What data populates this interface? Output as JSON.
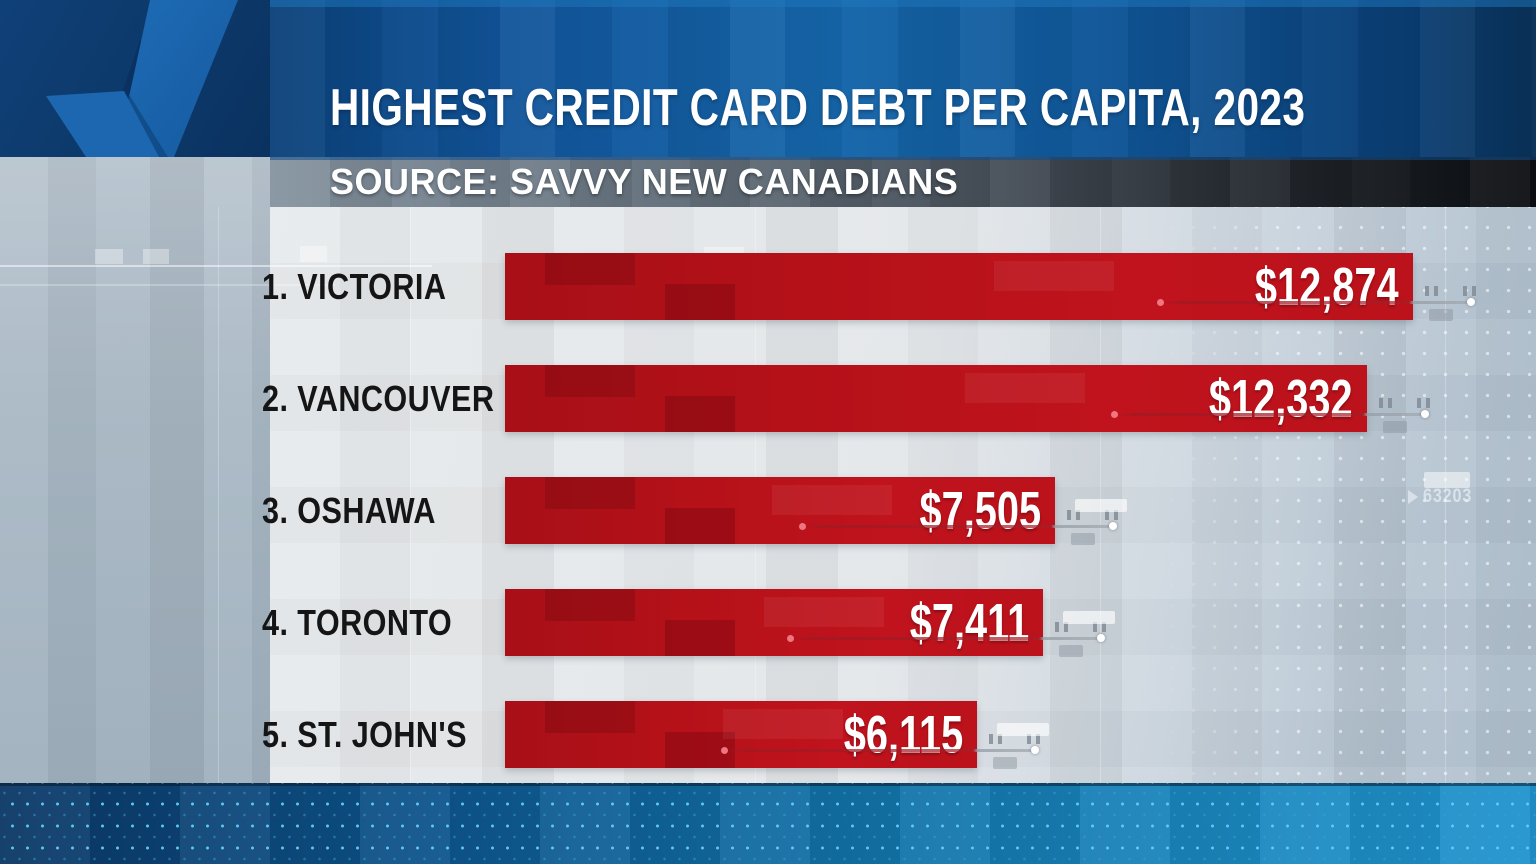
{
  "header": {
    "title": "HIGHEST CREDIT CARD DEBT PER CAPITA, 2023"
  },
  "source_bar": {
    "label": "SOURCE: SAVVY NEW CANADIANS"
  },
  "chart_data": {
    "type": "bar",
    "orientation": "horizontal",
    "title": "HIGHEST CREDIT CARD DEBT PER CAPITA, 2023",
    "source": "SAVVY NEW CANADIANS",
    "categories": [
      "1. VICTORIA",
      "2. VANCOUVER",
      "3. OSHAWA",
      "4. TORONTO",
      "5. ST. JOHN'S"
    ],
    "values": [
      12874,
      12332,
      7505,
      7411,
      6115
    ],
    "value_labels": [
      "$12,874",
      "$12,332",
      "$7,505",
      "$7,411",
      "$6,115"
    ],
    "xlim": [
      0,
      13600
    ],
    "grid": false,
    "legend": false,
    "bar_color": "#b91219",
    "label_color": "#151515",
    "value_text_color": "#ffffff"
  },
  "decor": {
    "ticker_text": "63203"
  },
  "colors": {
    "navy": "#0d3a6c",
    "title_band_blue": "#1566aa",
    "logo_blue": "#1d67b0",
    "source_bar_dark": "#0b0d10",
    "panel_gray": "#e3e6e9",
    "panel_blue_gray": "#b0c0ce",
    "footer_blue": "#1271a6",
    "footer_dot_cyan": "#4fc7f3",
    "accent_red": "#b91219"
  }
}
